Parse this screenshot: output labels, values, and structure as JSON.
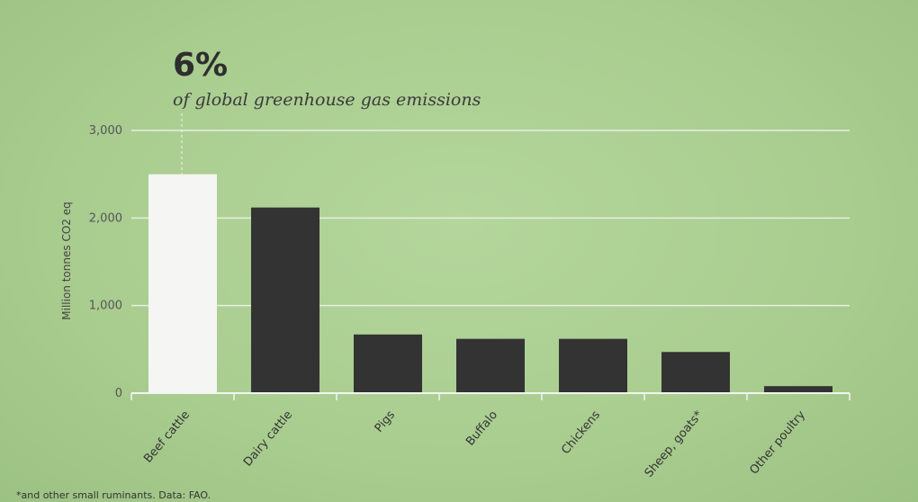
{
  "header": {
    "big_stat": "6%",
    "subtitle": "of global greenhouse gas emissions"
  },
  "footnote": "*and other small ruminants. Data: FAO.",
  "colors": {
    "background": "#a9cc8f",
    "highlight_bar": "#f5f5f3",
    "bar": "#333333",
    "grid": "#e6efe0"
  },
  "chart_data": {
    "type": "bar",
    "categories": [
      "Beef cattle",
      "Dairy cattle",
      "Pigs",
      "Buffalo",
      "Chickens",
      "Sheep, goats*",
      "Other poultry"
    ],
    "values": [
      2500,
      2120,
      670,
      620,
      620,
      470,
      80
    ],
    "highlight_index": 0,
    "ylabel": "Million tonnes CO2 eq",
    "ylim": [
      0,
      3000
    ],
    "yticks": [
      0,
      1000,
      2000,
      3000
    ],
    "ytick_labels": [
      "0",
      "1,000",
      "2,000",
      "3,000"
    ],
    "grid": true
  }
}
